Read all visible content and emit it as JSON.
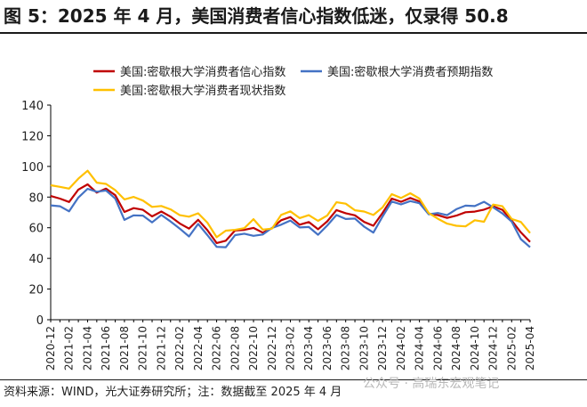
{
  "header": {
    "title": "图 5：2025 年 4 月，美国消费者信心指数低迷，仅录得 50.8"
  },
  "footer": {
    "source": "资料来源：WIND，光大证券研究所；注：数据截至 2025 年 4 月",
    "watermark": "公众号 · 高瑞东宏观笔记"
  },
  "chart_data": {
    "type": "line",
    "title": "图 5：2025 年 4 月，美国消费者信心指数低迷，仅录得 50.8",
    "xlabel": "",
    "ylabel": "",
    "ylim": [
      0,
      140
    ],
    "yticks": [
      0,
      20,
      40,
      60,
      80,
      100,
      120,
      140
    ],
    "grid": false,
    "legend_position": "top",
    "x": [
      "2020-12",
      "2021-01",
      "2021-02",
      "2021-03",
      "2021-04",
      "2021-05",
      "2021-06",
      "2021-07",
      "2021-08",
      "2021-09",
      "2021-10",
      "2021-11",
      "2021-12",
      "2022-01",
      "2022-02",
      "2022-03",
      "2022-04",
      "2022-05",
      "2022-06",
      "2022-07",
      "2022-08",
      "2022-09",
      "2022-10",
      "2022-11",
      "2022-12",
      "2023-01",
      "2023-02",
      "2023-03",
      "2023-04",
      "2023-05",
      "2023-06",
      "2023-07",
      "2023-08",
      "2023-09",
      "2023-10",
      "2023-11",
      "2023-12",
      "2024-01",
      "2024-02",
      "2024-03",
      "2024-04",
      "2024-05",
      "2024-06",
      "2024-07",
      "2024-08",
      "2024-09",
      "2024-10",
      "2024-11",
      "2024-12",
      "2025-01",
      "2025-02",
      "2025-03",
      "2025-04"
    ],
    "xtick_labels": [
      "2020-12",
      "2021-02",
      "2021-04",
      "2021-06",
      "2021-08",
      "2021-10",
      "2021-12",
      "2022-02",
      "2022-04",
      "2022-06",
      "2022-08",
      "2022-10",
      "2022-12",
      "2023-02",
      "2023-04",
      "2023-06",
      "2023-08",
      "2023-10",
      "2023-12",
      "2024-02",
      "2024-04",
      "2024-06",
      "2024-08",
      "2024-10",
      "2024-12",
      "2025-02",
      "2025-04"
    ],
    "series": [
      {
        "name": "美国:密歇根大学消费者信心指数",
        "color": "#c00000",
        "values": [
          80.7,
          79.0,
          76.8,
          84.9,
          88.3,
          82.9,
          85.5,
          81.2,
          70.3,
          72.8,
          71.7,
          67.4,
          70.6,
          67.2,
          62.8,
          59.4,
          65.2,
          58.4,
          50.0,
          51.5,
          58.2,
          58.6,
          59.9,
          56.8,
          59.7,
          64.9,
          67.0,
          62.0,
          63.7,
          59.0,
          64.2,
          71.5,
          69.5,
          68.1,
          63.8,
          61.3,
          69.7,
          79.0,
          76.9,
          79.4,
          77.2,
          69.1,
          68.2,
          66.4,
          67.9,
          70.1,
          70.5,
          71.8,
          74.0,
          71.7,
          64.7,
          57.0,
          50.8
        ]
      },
      {
        "name": "美国:密歇根大学消费者预期指数",
        "color": "#4472c4",
        "values": [
          74.6,
          74.0,
          70.7,
          79.7,
          85.4,
          83.5,
          84.3,
          79.0,
          65.1,
          68.1,
          67.9,
          63.5,
          68.3,
          64.1,
          59.4,
          54.3,
          62.5,
          55.2,
          47.5,
          47.3,
          55.2,
          56.1,
          54.7,
          55.6,
          59.9,
          62.0,
          64.7,
          60.2,
          60.5,
          55.4,
          61.5,
          68.3,
          65.7,
          66.0,
          60.7,
          56.8,
          67.4,
          77.1,
          75.2,
          77.4,
          76.0,
          68.8,
          69.6,
          68.2,
          72.1,
          74.4,
          74.1,
          76.9,
          73.3,
          69.3,
          64.0,
          52.6,
          47.3
        ]
      },
      {
        "name": "美国:密歇根大学消费者现状指数",
        "color": "#ffc000",
        "values": [
          87.7,
          86.7,
          85.5,
          92.0,
          97.2,
          89.4,
          88.6,
          84.5,
          78.5,
          80.1,
          77.7,
          73.6,
          74.2,
          72.0,
          68.2,
          67.2,
          69.4,
          63.3,
          53.8,
          58.1,
          58.6,
          59.7,
          65.6,
          58.8,
          59.4,
          68.4,
          70.7,
          66.3,
          68.2,
          64.5,
          68.0,
          76.6,
          75.7,
          71.4,
          70.6,
          68.3,
          73.3,
          81.9,
          79.4,
          82.5,
          79.0,
          69.6,
          65.9,
          62.7,
          61.3,
          60.9,
          64.9,
          63.9,
          75.1,
          74.0,
          65.7,
          63.8,
          56.5
        ]
      }
    ]
  }
}
